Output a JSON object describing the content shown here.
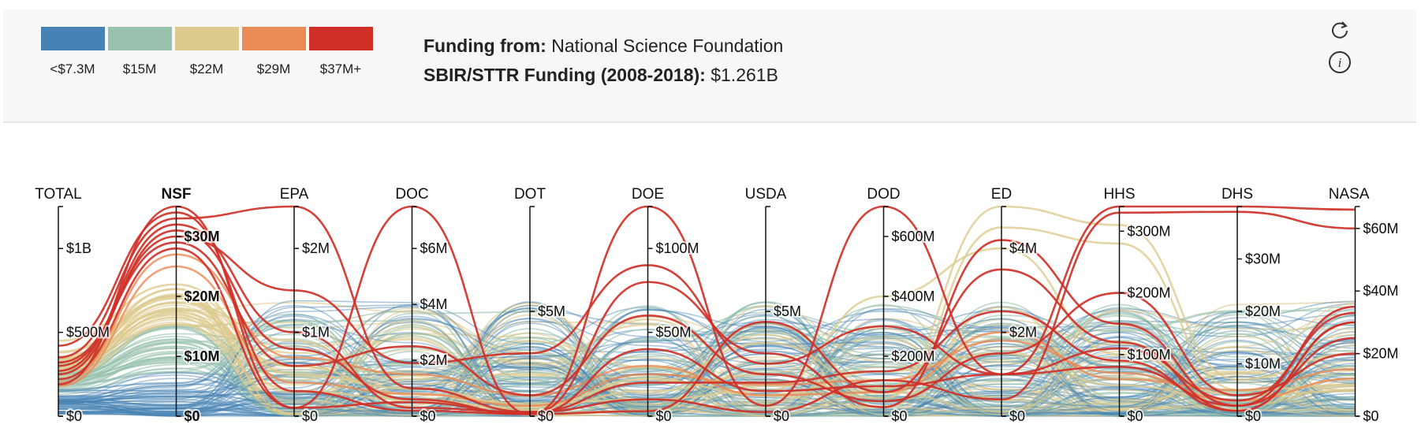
{
  "legend": {
    "colors": [
      "#4682b4",
      "#97c1ad",
      "#ddca8e",
      "#ea8a54",
      "#cf3128"
    ],
    "labels": [
      "<$7.3M",
      "$15M",
      "$22M",
      "$29M",
      "$37M+"
    ]
  },
  "info": {
    "funding_from_label": "Funding from:",
    "funding_from_value": "National Science Foundation",
    "total_label": "SBIR/STTR Funding (2008-2018):",
    "total_value": "$1.261B"
  },
  "icons": {
    "refresh": "refresh-icon",
    "info": "info-icon"
  },
  "chart_data": {
    "type": "parallel-coordinates",
    "selected_axis": "NSF",
    "axes": [
      {
        "name": "TOTAL",
        "max": 1.25,
        "unit": "B",
        "ticks": [
          {
            "v": 0,
            "label": "$0"
          },
          {
            "v": 0.5,
            "label": "$500M"
          },
          {
            "v": 1.0,
            "label": "$1B"
          }
        ]
      },
      {
        "name": "NSF",
        "max": 35,
        "unit": "M",
        "ticks": [
          {
            "v": 0,
            "label": "$0"
          },
          {
            "v": 10,
            "label": "$10M"
          },
          {
            "v": 20,
            "label": "$20M"
          },
          {
            "v": 30,
            "label": "$30M"
          }
        ]
      },
      {
        "name": "EPA",
        "max": 2.5,
        "unit": "M",
        "ticks": [
          {
            "v": 0,
            "label": "$0"
          },
          {
            "v": 1,
            "label": "$1M"
          },
          {
            "v": 2,
            "label": "$2M"
          }
        ]
      },
      {
        "name": "DOC",
        "max": 7.5,
        "unit": "M",
        "ticks": [
          {
            "v": 0,
            "label": "$0"
          },
          {
            "v": 2,
            "label": "$2M"
          },
          {
            "v": 4,
            "label": "$4M"
          },
          {
            "v": 6,
            "label": "$6M"
          }
        ]
      },
      {
        "name": "DOT",
        "max": 10,
        "unit": "M",
        "ticks": [
          {
            "v": 0,
            "label": "$0"
          },
          {
            "v": 5,
            "label": "$5M"
          }
        ]
      },
      {
        "name": "DOE",
        "max": 125,
        "unit": "M",
        "ticks": [
          {
            "v": 0,
            "label": "$0"
          },
          {
            "v": 50,
            "label": "$50M"
          },
          {
            "v": 100,
            "label": "$100M"
          }
        ]
      },
      {
        "name": "USDA",
        "max": 10,
        "unit": "M",
        "ticks": [
          {
            "v": 0,
            "label": "$0"
          },
          {
            "v": 5,
            "label": "$5M"
          }
        ]
      },
      {
        "name": "DOD",
        "max": 700,
        "unit": "M",
        "ticks": [
          {
            "v": 0,
            "label": "$0"
          },
          {
            "v": 200,
            "label": "$200M"
          },
          {
            "v": 400,
            "label": "$400M"
          },
          {
            "v": 600,
            "label": "$600M"
          }
        ]
      },
      {
        "name": "ED",
        "max": 5,
        "unit": "M",
        "ticks": [
          {
            "v": 0,
            "label": "$0"
          },
          {
            "v": 2,
            "label": "$2M"
          },
          {
            "v": 4,
            "label": "$4M"
          }
        ]
      },
      {
        "name": "HHS",
        "max": 340,
        "unit": "M",
        "ticks": [
          {
            "v": 0,
            "label": "$0"
          },
          {
            "v": 100,
            "label": "$100M"
          },
          {
            "v": 200,
            "label": "$200M"
          },
          {
            "v": 300,
            "label": "$300M"
          }
        ]
      },
      {
        "name": "DHS",
        "max": 40,
        "unit": "M",
        "ticks": [
          {
            "v": 0,
            "label": "$0"
          },
          {
            "v": 10,
            "label": "$10M"
          },
          {
            "v": 20,
            "label": "$20M"
          },
          {
            "v": 30,
            "label": "$30M"
          }
        ]
      },
      {
        "name": "NASA",
        "max": 67,
        "unit": "M",
        "ticks": [
          {
            "v": 0,
            "label": "$0"
          },
          {
            "v": 20,
            "label": "$20M"
          },
          {
            "v": 40,
            "label": "$40M"
          },
          {
            "v": 60,
            "label": "$60M"
          }
        ]
      }
    ],
    "highlighted_series": [
      {
        "band": 4,
        "values": [
          0.19,
          35,
          0.1,
          7.5,
          0.1,
          125,
          0.5,
          700,
          1.0,
          340,
          40,
          66
        ]
      },
      {
        "band": 4,
        "values": [
          0.35,
          33,
          2.5,
          1.0,
          0.2,
          10,
          0.2,
          120,
          0.4,
          330,
          39,
          60
        ]
      },
      {
        "band": 4,
        "values": [
          0.25,
          31,
          0.8,
          0.6,
          0.1,
          80,
          3.0,
          30,
          4.2,
          150,
          2,
          35
        ]
      },
      {
        "band": 4,
        "values": [
          0.42,
          34,
          0.3,
          0.2,
          0.1,
          3,
          4.5,
          80,
          3.5,
          120,
          1,
          30
        ]
      },
      {
        "band": 4,
        "values": [
          0.3,
          30,
          1.5,
          1.9,
          3.0,
          90,
          2.5,
          300,
          1.0,
          110,
          3,
          33
        ]
      },
      {
        "band": 4,
        "values": [
          0.22,
          28,
          0.1,
          0.5,
          0.1,
          40,
          1.2,
          100,
          1.0,
          80,
          2,
          25
        ]
      },
      {
        "band": 4,
        "values": [
          0.32,
          29,
          0.6,
          2.5,
          1.0,
          60,
          2.0,
          50,
          1.5,
          200,
          4,
          20
        ]
      },
      {
        "band": 4,
        "values": [
          0.27,
          32,
          1.0,
          0.3,
          0.2,
          20,
          1.6,
          150,
          2.5,
          90,
          1,
          30
        ]
      },
      {
        "band": 3,
        "values": [
          0.2,
          27,
          0.7,
          1.5,
          1.0,
          30,
          1.0,
          80,
          2.0,
          60,
          5,
          15
        ]
      },
      {
        "band": 3,
        "values": [
          0.18,
          25,
          0.4,
          0.8,
          0.5,
          25,
          1.5,
          120,
          1.8,
          70,
          3,
          12
        ]
      },
      {
        "band": 2,
        "values": [
          0.45,
          22,
          0.5,
          1.0,
          0.5,
          20,
          3.5,
          90,
          5.0,
          310,
          7,
          20
        ]
      },
      {
        "band": 2,
        "values": [
          0.38,
          20,
          0.3,
          0.6,
          0.3,
          15,
          2.0,
          60,
          4.5,
          280,
          5,
          10
        ]
      },
      {
        "band": 2,
        "values": [
          0.3,
          18,
          0.6,
          0.8,
          0.6,
          10,
          1.2,
          400,
          4.0,
          100,
          4,
          8
        ]
      },
      {
        "band": 2,
        "values": [
          0.28,
          19,
          0.9,
          0.5,
          0.4,
          22,
          1.0,
          150,
          1.5,
          50,
          3,
          12
        ]
      }
    ],
    "background_series_note": "additional low-funding lines colored by the NSF value bands"
  }
}
